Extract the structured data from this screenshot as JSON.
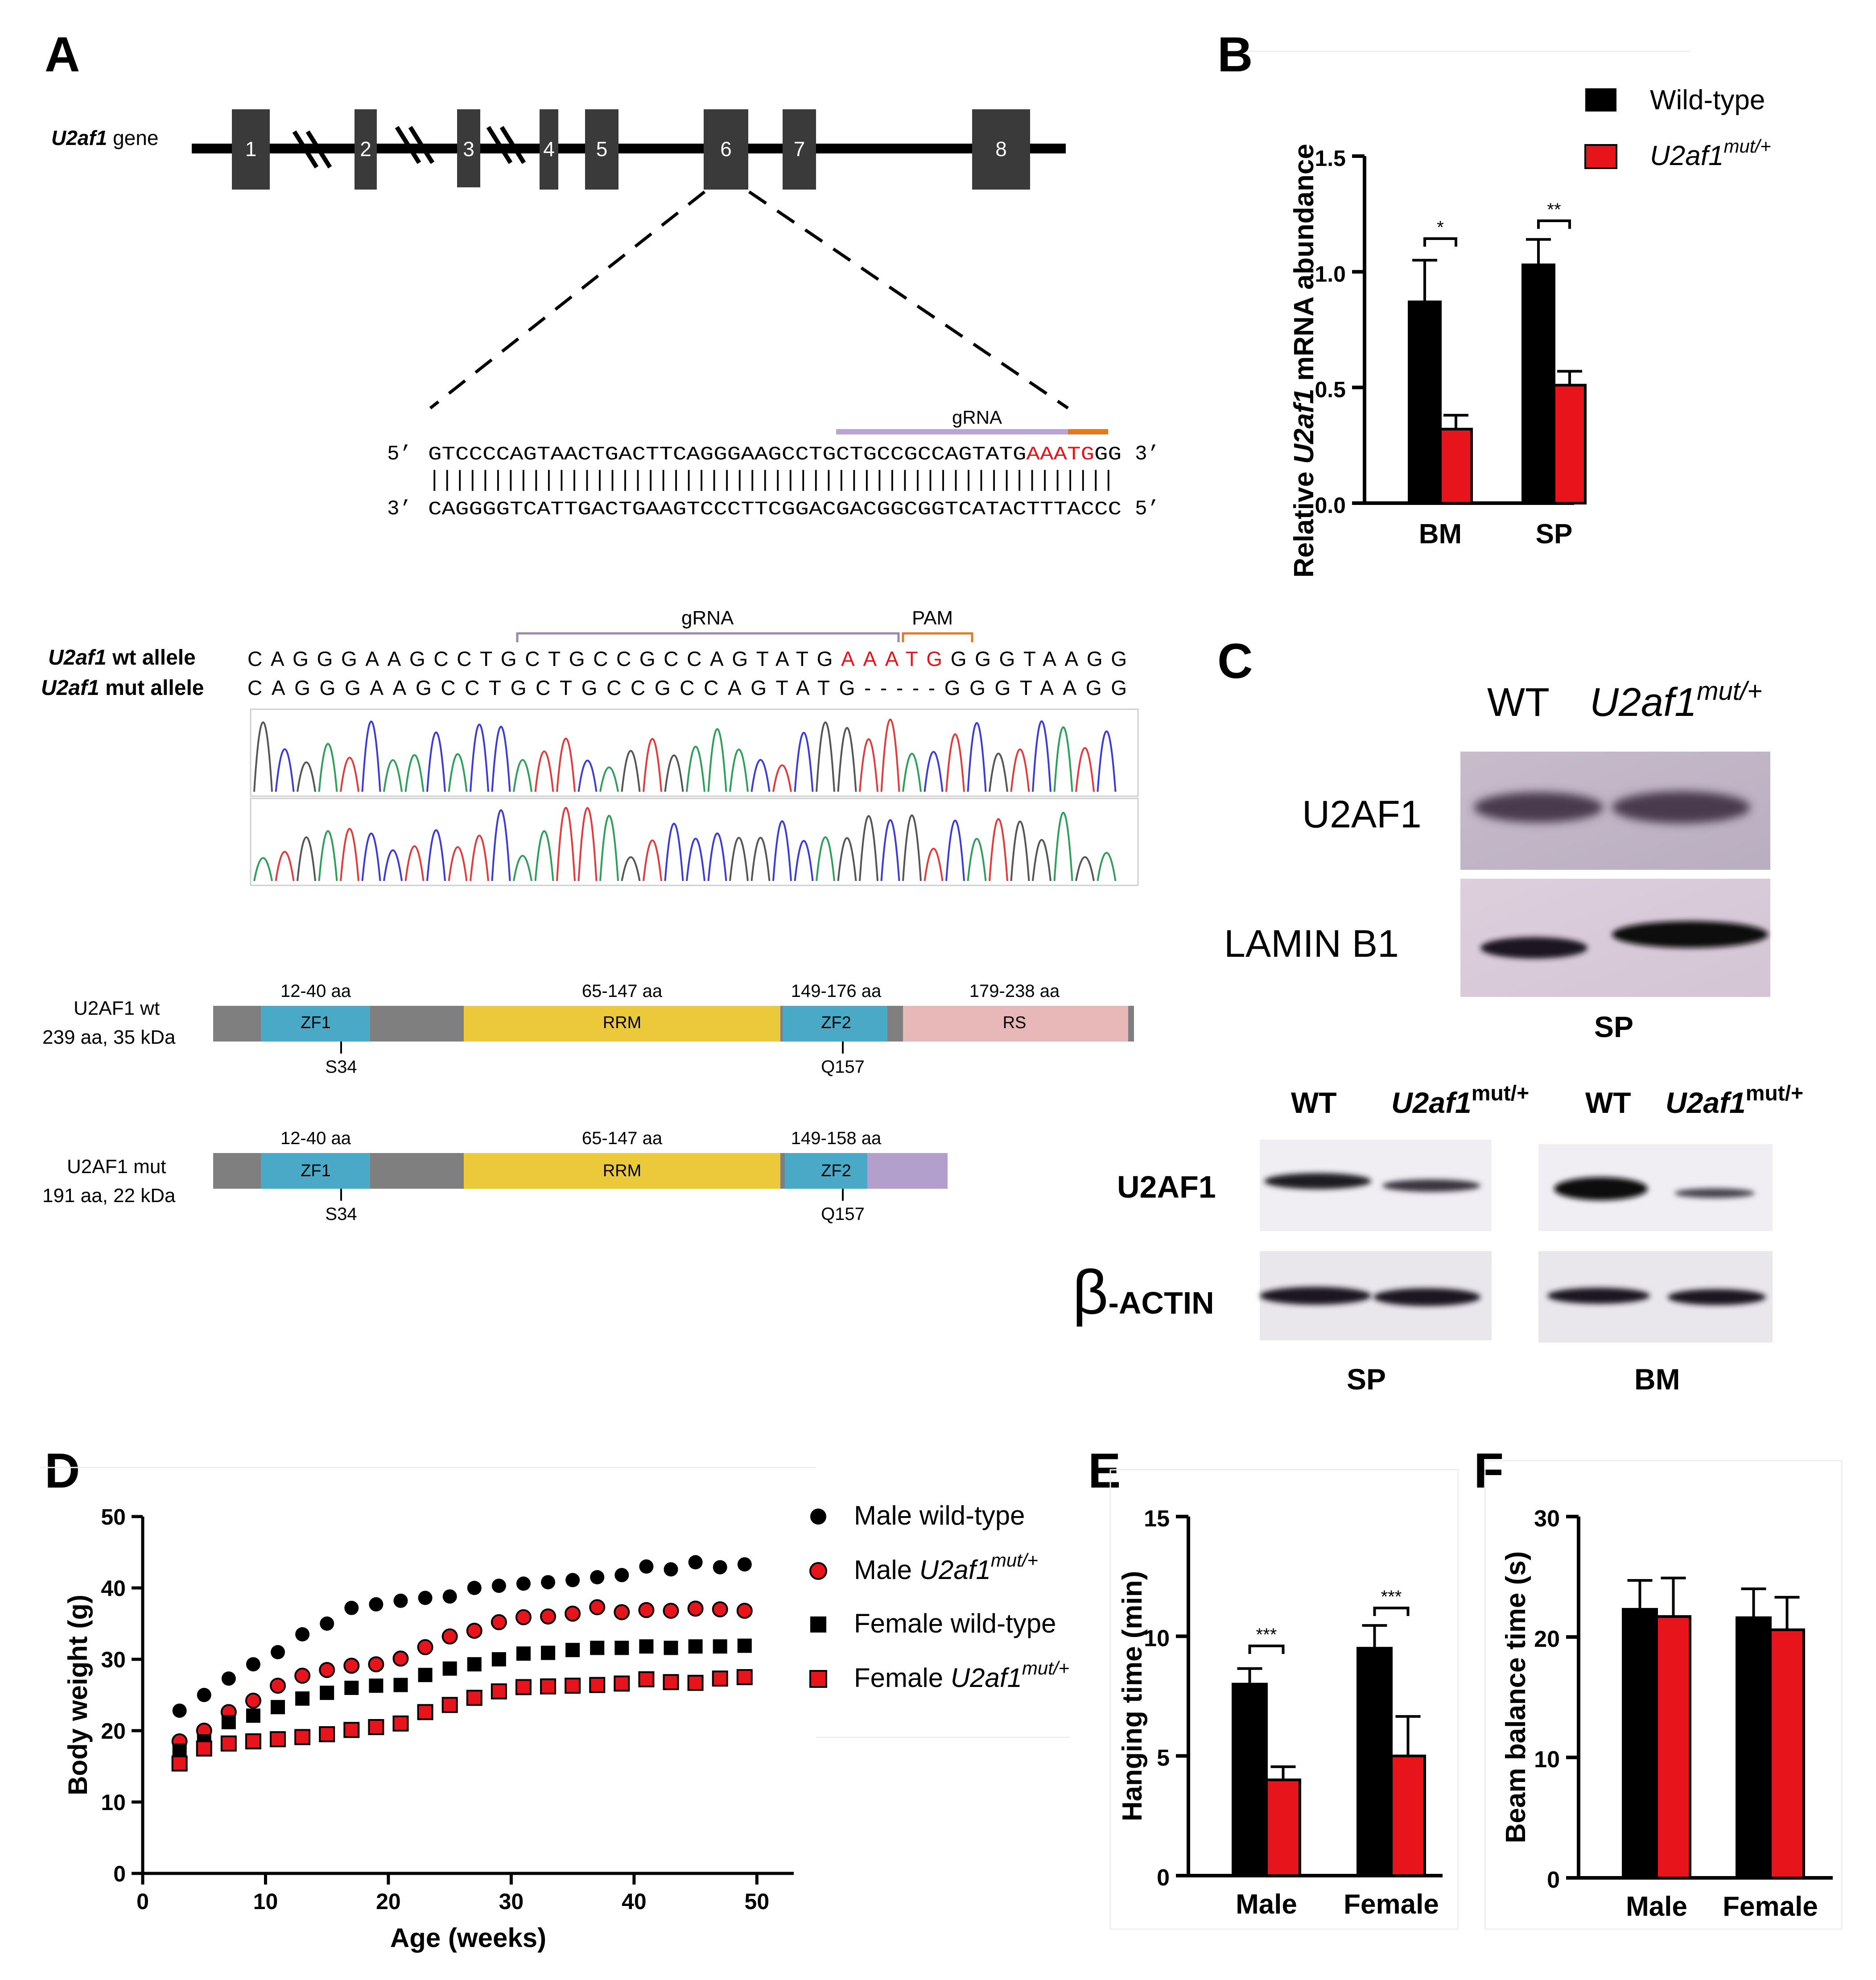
{
  "colors": {
    "black": "#000000",
    "red": "#e8141b",
    "exon": "#3a3a3a",
    "grna": "#b8a6d0",
    "pam": "#e27a1f",
    "zf": "#4aa9c6",
    "rrm": "#ecc93a",
    "rs": "#e8b8b8",
    "gray": "#7f7f7f",
    "tail": "#b39fcc"
  },
  "panelA": {
    "label": "A",
    "gene_label_italic": "U2af1",
    "gene_label_rest": " gene",
    "exons": [
      "1",
      "2",
      "3",
      "4",
      "5",
      "6",
      "7",
      "8"
    ],
    "top_prefix": "5’",
    "top_seq": "GTCCCCAGTAACTGACTTCAGGGAAGCCTGCTGCCGCCAGTATG",
    "top_red": "AAATG",
    "top_tail": "GG",
    "top_suffix": "3’",
    "bars": "||||||||||||||||||||||||||||||||||||||||||||||||||||||",
    "bottom_prefix": "3’",
    "bottom_seq": "CAGGGGTCATTGACTGAAGTCCCTTCGGACGACGGCGGTCATACTTTACCC",
    "bottom_suffix": "5’",
    "grna_label": "gRNA",
    "grna_label2": "gRNA",
    "pam_label": "PAM",
    "wt_allele_italic": "U2af1",
    "wt_allele_rest": " wt allele",
    "mut_allele_italic": "U2af1",
    "mut_allele_rest": " mut allele",
    "wt_seq_a": "CAGGGAAGCCTGCTGCCGCCAGTATG",
    "wt_seq_red": "AAATG",
    "wt_seq_b": "GGGTAAGG",
    "mut_seq": "CAGGGAAGCCTGCTGCCGCCAGTATG-----GGGTAAGG",
    "wt_protein_name": "U2AF1 wt",
    "wt_protein_info": "239 aa, 35 kDa",
    "mut_protein_name": "U2AF1 mut",
    "mut_protein_info": "191 aa, 22 kDa",
    "wt_domains": [
      {
        "range": "12-40 aa",
        "name": "ZF1"
      },
      {
        "range": "65-147 aa",
        "name": "RRM"
      },
      {
        "range": "149-176 aa",
        "name": "ZF2"
      },
      {
        "range": "179-238 aa",
        "name": "RS"
      }
    ],
    "mut_domains": [
      {
        "range": "12-40 aa",
        "name": "ZF1"
      },
      {
        "range": "65-147 aa",
        "name": "RRM"
      },
      {
        "range": "149-158 aa",
        "name": "ZF2"
      }
    ],
    "site1": "S34",
    "site2": "Q157"
  },
  "panelC": {
    "label": "C",
    "wt": "WT",
    "mut_italic": "U2af1",
    "mut_sup": "mut/+",
    "band1": "U2AF1",
    "band2": "LAMIN B1",
    "tissue_top": "SP",
    "wt2": "WT",
    "mut2_italic": "U2af1",
    "mut2_sup": "mut/+",
    "wt3": "WT",
    "mut3_italic": "U2af1",
    "mut3_sup": "mut/+",
    "band3": "U2AF1",
    "band4_greek": "β",
    "band4_rest": "-ACTIN",
    "tissue_sp": "SP",
    "tissue_bm": "BM"
  },
  "chart_data": [
    {
      "panel": "B",
      "type": "bar",
      "ylabel_pre": "Relative ",
      "ylabel_italic": "U2af1",
      "ylabel_post": " mRNA abundance",
      "categories": [
        "BM",
        "SP"
      ],
      "ylim": [
        0,
        1.5
      ],
      "yticks": [
        "0.0",
        "0.5",
        "1.0",
        "1.5"
      ],
      "series": [
        {
          "name": "Wild-type",
          "values": [
            0.87,
            1.03
          ],
          "errors": [
            0.18,
            0.11
          ]
        },
        {
          "name": "U2af1",
          "name_sup": "mut/+",
          "values": [
            0.32,
            0.51
          ],
          "errors": [
            0.06,
            0.06
          ]
        }
      ],
      "significance": [
        "*",
        "**"
      ],
      "legend": "top-right"
    },
    {
      "panel": "D",
      "type": "scatter",
      "xlabel": "Age (weeks)",
      "ylabel": "Body weight (g)",
      "xlim": [
        0,
        53
      ],
      "ylim": [
        0,
        50
      ],
      "xticks": [
        "0",
        "10",
        "20",
        "30",
        "40",
        "50"
      ],
      "yticks": [
        "0",
        "10",
        "20",
        "30",
        "40",
        "50"
      ],
      "x": [
        3,
        5,
        7,
        9,
        11,
        13,
        15,
        17,
        19,
        21,
        23,
        25,
        27,
        29,
        31,
        33,
        35,
        37,
        39,
        41,
        43,
        45,
        47,
        49
      ],
      "series": [
        {
          "name": "Male wild-type",
          "marker": "circle",
          "color": "black",
          "values": [
            22.8,
            25.0,
            27.3,
            29.3,
            31.0,
            33.5,
            35.0,
            37.2,
            37.7,
            38.2,
            38.6,
            38.8,
            40.0,
            40.3,
            40.6,
            40.8,
            41.1,
            41.5,
            41.8,
            43.0,
            42.6,
            43.6,
            42.9,
            43.3
          ]
        },
        {
          "name": "Male ",
          "name_italic": "U2af1",
          "name_sup": "mut/+",
          "marker": "circle",
          "color": "red",
          "values": [
            18.5,
            20.0,
            22.6,
            24.2,
            26.3,
            27.7,
            28.5,
            29.1,
            29.3,
            30.1,
            31.7,
            33.2,
            34.0,
            35.2,
            35.9,
            36.0,
            36.4,
            37.3,
            36.6,
            36.9,
            36.8,
            37.1,
            37.0,
            36.8
          ]
        },
        {
          "name": "Female wild-type",
          "marker": "square",
          "color": "black",
          "values": [
            17.2,
            18.5,
            21.2,
            22.1,
            23.3,
            24.5,
            25.3,
            26.0,
            26.3,
            26.4,
            27.8,
            28.7,
            29.3,
            30.0,
            30.8,
            30.9,
            31.3,
            31.6,
            31.6,
            31.8,
            31.6,
            31.8,
            31.8,
            31.9
          ]
        },
        {
          "name": "Female ",
          "name_italic": "U2af1",
          "name_sup": "mut/+",
          "marker": "square",
          "color": "red",
          "values": [
            15.4,
            17.5,
            18.2,
            18.5,
            18.8,
            19.1,
            19.5,
            20.1,
            20.5,
            21.0,
            22.6,
            23.6,
            24.6,
            25.5,
            26.1,
            26.2,
            26.3,
            26.4,
            26.6,
            27.2,
            26.8,
            26.7,
            27.3,
            27.5
          ]
        }
      ]
    },
    {
      "panel": "E",
      "type": "bar",
      "ylabel": "Hanging time (min)",
      "categories": [
        "Male",
        "Female"
      ],
      "ylim": [
        0,
        15
      ],
      "yticks": [
        "0",
        "5",
        "10",
        "15"
      ],
      "series": [
        {
          "name": "Wild-type",
          "values": [
            8.0,
            9.5
          ],
          "errors": [
            0.65,
            0.95
          ]
        },
        {
          "name": "U2af1 mut/+",
          "values": [
            4.0,
            5.0
          ],
          "errors": [
            0.55,
            1.65
          ]
        }
      ],
      "significance": [
        "***",
        "***"
      ]
    },
    {
      "panel": "F",
      "type": "bar",
      "ylabel": "Beam balance time (s)",
      "categories": [
        "Male",
        "Female"
      ],
      "ylim": [
        0,
        30
      ],
      "yticks": [
        "0",
        "10",
        "20",
        "30"
      ],
      "series": [
        {
          "name": "Wild-type",
          "values": [
            22.3,
            21.6
          ],
          "errors": [
            2.4,
            2.4
          ]
        },
        {
          "name": "U2af1 mut/+",
          "values": [
            21.7,
            20.6
          ],
          "errors": [
            3.2,
            2.7
          ]
        }
      ]
    }
  ]
}
